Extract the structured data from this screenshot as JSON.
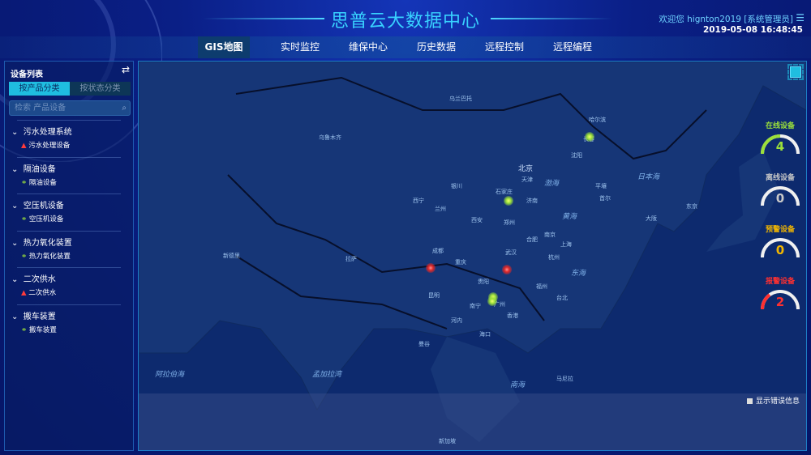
{
  "header": {
    "title": "思普云大数据中心",
    "welcome": "欢迎您  hignton2019 [系统管理员]",
    "menu_icon": "list-icon",
    "datetime": "2019-05-08 16:48:45"
  },
  "nav": {
    "tabs": [
      {
        "label": "GIS地图",
        "active": true
      },
      {
        "label": "实时监控"
      },
      {
        "label": "维保中心"
      },
      {
        "label": "历史数据"
      },
      {
        "label": "远程控制"
      },
      {
        "label": "远程编程"
      }
    ]
  },
  "sidebar": {
    "title": "设备列表",
    "swap_icon": "swap-icon",
    "tabs": [
      "按产品分类",
      "按状态分类"
    ],
    "search_placeholder": "检索 产品设备",
    "groups": [
      {
        "label": "污水处理系统",
        "item": "污水处理设备",
        "status": "warning"
      },
      {
        "label": "隔油设备",
        "item": "隔油设备",
        "status": "link"
      },
      {
        "label": "空压机设备",
        "item": "空压机设备",
        "status": "link"
      },
      {
        "label": "热力氧化装置",
        "item": "热力氧化装置",
        "status": "link"
      },
      {
        "label": "二次供水",
        "item": "二次供水",
        "status": "warning"
      },
      {
        "label": "搬车装置",
        "item": "搬车装置",
        "status": "link"
      }
    ]
  },
  "map": {
    "labels": {
      "beijing": "北京",
      "tianjin": "天津",
      "bohai": "渤海",
      "huanghai": "黄海",
      "donghai": "东海",
      "nanhai": "南海",
      "ribenhai": "日本海",
      "alabo": "阿拉伯海",
      "mengjiala": "孟加拉湾",
      "wulumuqi": "乌鲁木齐",
      "xian": "西安",
      "chengdu": "成都",
      "chongqing": "重庆",
      "shanghai": "上海",
      "wuhan": "武汉",
      "guangzhou": "广州",
      "xianggang": "香港",
      "lasa": "拉萨",
      "kunming": "昆明",
      "shenyang": "沈阳",
      "changchun": "长春",
      "haerbin": "哈尔滨",
      "hangzhou": "杭州",
      "nanjing": "南京",
      "hefei": "合肥",
      "fuzhou": "福州",
      "taibei": "台北",
      "zhengzhou": "郑州",
      "jinan": "济南",
      "shijiazhuang": "石家庄",
      "lanzhou": "兰州",
      "xining": "西宁",
      "yinchuan": "银川",
      "guiyang": "贵阳",
      "nanning": "南宁",
      "haikou": "海口",
      "dongjing": "东京",
      "dahan": "大阪",
      "shouer": "首尔",
      "pingrang": "平壤",
      "xinjiapo": "新加坡",
      "maniла": "马尼拉",
      "xindeli": "新德里",
      "manggu": "曼谷",
      "hanoi": "河内",
      "wulanbatuo": "乌兰巴托"
    },
    "markers": [
      {
        "status": "online",
        "lat": 45.0,
        "lng": 125.5
      },
      {
        "status": "online",
        "lat": 38.0,
        "lng": 114.5
      },
      {
        "status": "online",
        "lat": 27.5,
        "lng": 112.5
      },
      {
        "status": "online",
        "lat": 27.0,
        "lng": 112.3
      },
      {
        "status": "alarm",
        "lat": 30.7,
        "lng": 104.0
      },
      {
        "status": "alarm",
        "lat": 30.5,
        "lng": 114.3
      }
    ],
    "fullscreen_icon": "fullscreen-icon",
    "show_errors_label": "显示错误信息",
    "show_errors_checked": false
  },
  "stats": [
    {
      "label": "在线设备",
      "value": "4",
      "fraction": 0.5,
      "color": "#9be03a"
    },
    {
      "label": "离线设备",
      "value": "0",
      "fraction": 0,
      "color": "#c8c8c8"
    },
    {
      "label": "预警设备",
      "value": "0",
      "fraction": 0,
      "color": "#f2b600"
    },
    {
      "label": "报警设备",
      "value": "2",
      "fraction": 0.3,
      "color": "#ff3030"
    }
  ]
}
